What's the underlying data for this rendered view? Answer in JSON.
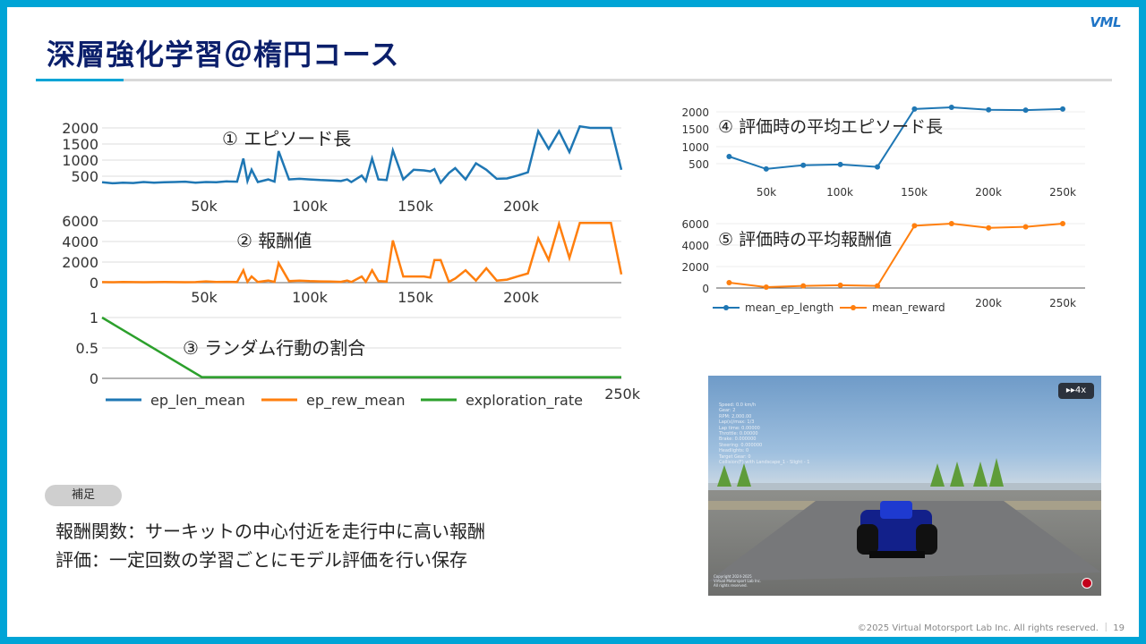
{
  "slide": {
    "title": "深層強化学習＠楕円コース",
    "logo": "VML",
    "note_badge": "補足",
    "notes": [
      "報酬関数：サーキットの中心付近を走行中に高い報酬",
      "評価：一定回数の学習ごとにモデル評価を行い保存"
    ],
    "footer": "©2025 Virtual Motorsport Lab Inc. All rights reserved. ｜ 19"
  },
  "colors": {
    "blue": "#1f77b4",
    "orange": "#ff7f0e",
    "green": "#2ca02c",
    "accent": "#00a4d6",
    "title": "#0b1f6b"
  },
  "sim_view": {
    "speed_button": "▸▸4x",
    "hud_lines": [
      "Speed: 0.0 km/h",
      "Gear: 2",
      "RPM: 2,000.00",
      "Lap(s)/max: 1/3",
      "Lap time: 0.00000",
      "Throttle: 0.00000",
      "Brake: 0.000000",
      "Steering: 0.000000",
      "Headlights: 0",
      "Target Gear: 0",
      "Collision(F) with Landscape_1 - Slight - 1"
    ],
    "copyright_lines": [
      "Copyright 2024-2025",
      "Virtual Motorsport Lab Inc.",
      "All rights reserved."
    ]
  },
  "chart_data": [
    {
      "type": "line",
      "x": [
        0,
        5000,
        10000,
        15000,
        20000,
        25000,
        30000,
        35000,
        40000,
        45000,
        50000,
        55000,
        60000,
        65000,
        68000,
        70000,
        72000,
        75000,
        80000,
        83000,
        85000,
        90000,
        95000,
        100000,
        105000,
        110000,
        115000,
        118000,
        120000,
        125000,
        127000,
        130000,
        133000,
        137000,
        140000,
        145000,
        150000,
        155000,
        158000,
        160000,
        163000,
        167000,
        170000,
        175000,
        180000,
        185000,
        190000,
        195000,
        200000,
        205000,
        210000,
        215000,
        220000,
        225000,
        230000,
        235000,
        240000,
        245000,
        250000
      ],
      "series": [
        {
          "name": "ep_len_mean",
          "values": [
            310,
            280,
            300,
            290,
            320,
            300,
            310,
            320,
            330,
            300,
            320,
            310,
            340,
            330,
            1050,
            350,
            700,
            320,
            400,
            330,
            1280,
            400,
            420,
            400,
            380,
            370,
            350,
            400,
            320,
            520,
            350,
            1050,
            400,
            380,
            1300,
            400,
            700,
            680,
            650,
            720,
            300,
            600,
            750,
            400,
            900,
            700,
            420,
            430,
            520,
            620,
            1900,
            1350,
            1900,
            1250,
            2050,
            2000,
            2000,
            2000,
            700
          ]
        }
      ]
    },
    {
      "type": "line",
      "x": [
        0,
        5000,
        10000,
        15000,
        20000,
        25000,
        30000,
        35000,
        40000,
        45000,
        50000,
        55000,
        60000,
        65000,
        68000,
        70000,
        72000,
        75000,
        80000,
        83000,
        85000,
        90000,
        95000,
        100000,
        105000,
        110000,
        115000,
        118000,
        120000,
        125000,
        127000,
        130000,
        133000,
        137000,
        140000,
        145000,
        150000,
        155000,
        158000,
        160000,
        163000,
        167000,
        170000,
        175000,
        180000,
        185000,
        190000,
        195000,
        200000,
        205000,
        210000,
        215000,
        220000,
        225000,
        230000,
        235000,
        240000,
        245000,
        250000
      ],
      "series": [
        {
          "name": "ep_rew_mean",
          "values": [
            50,
            40,
            60,
            50,
            40,
            50,
            60,
            50,
            40,
            50,
            120,
            60,
            80,
            60,
            1200,
            80,
            600,
            60,
            200,
            80,
            1900,
            150,
            200,
            150,
            120,
            100,
            80,
            200,
            60,
            600,
            80,
            1200,
            150,
            100,
            4100,
            600,
            600,
            600,
            500,
            2200,
            2200,
            80,
            400,
            1200,
            200,
            1400,
            200,
            300,
            600,
            900,
            4300,
            2200,
            5700,
            2400,
            5800,
            5800,
            5800,
            5800,
            800
          ]
        }
      ]
    },
    {
      "type": "line",
      "x": [
        0,
        48000,
        250000
      ],
      "series": [
        {
          "name": "exploration_rate",
          "values": [
            1,
            0.02,
            0.02
          ]
        }
      ]
    },
    {
      "type": "line",
      "x": [
        25000,
        50000,
        75000,
        100000,
        125000,
        150000,
        175000,
        200000,
        225000,
        250000
      ],
      "series": [
        {
          "name": "mean_ep_length",
          "values": [
            700,
            340,
            450,
            470,
            400,
            2080,
            2130,
            2060,
            2050,
            2080
          ]
        }
      ]
    },
    {
      "type": "line",
      "x": [
        25000,
        50000,
        75000,
        100000,
        125000,
        150000,
        175000,
        200000,
        225000,
        250000
      ],
      "series": [
        {
          "name": "mean_reward",
          "values": [
            500,
            80,
            200,
            260,
            200,
            5800,
            6000,
            5600,
            5700,
            6000
          ]
        }
      ]
    }
  ],
  "charts": {
    "left_ticks_x": [
      "50k",
      "100k",
      "150k",
      "200k"
    ],
    "left_last_tick": "250k",
    "len_ticks_y": [
      "2000",
      "1500",
      "1000",
      "500"
    ],
    "rew_ticks_y": [
      "6000",
      "4000",
      "2000",
      "0"
    ],
    "exp_ticks_y": [
      "1",
      "0.5",
      "0"
    ],
    "annot_1": "① エピソード長",
    "annot_2": "② 報酬値",
    "annot_3": "③ ランダム行動の割合",
    "annot_4": "④ 評価時の平均エピソード長",
    "annot_5": "⑤ 評価時の平均報酬値",
    "right_ticks_x1": [
      "50k",
      "100k",
      "150k",
      "200k",
      "250k"
    ],
    "right_ticks_x2": [
      "200k",
      "250k"
    ],
    "right_len_ticks_y": [
      "2000",
      "1500",
      "1000",
      "500"
    ],
    "right_rew_ticks_y": [
      "6000",
      "4000",
      "2000",
      "0"
    ],
    "legend_left": [
      "ep_len_mean",
      "ep_rew_mean",
      "exploration_rate"
    ],
    "legend_right": [
      "mean_ep_length",
      "mean_reward"
    ]
  }
}
